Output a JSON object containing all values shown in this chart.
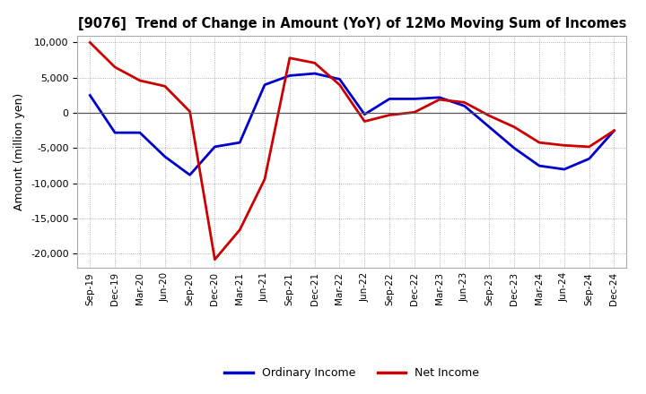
{
  "title": "[9076]  Trend of Change in Amount (YoY) of 12Mo Moving Sum of Incomes",
  "ylabel": "Amount (million yen)",
  "x_labels": [
    "Sep-19",
    "Dec-19",
    "Mar-20",
    "Jun-20",
    "Sep-20",
    "Dec-20",
    "Mar-21",
    "Jun-21",
    "Sep-21",
    "Dec-21",
    "Mar-22",
    "Jun-22",
    "Sep-22",
    "Dec-22",
    "Mar-23",
    "Jun-23",
    "Sep-23",
    "Dec-23",
    "Mar-24",
    "Jun-24",
    "Sep-24",
    "Dec-24"
  ],
  "ordinary_income": [
    2500,
    -2800,
    -2800,
    -6200,
    -8800,
    -4800,
    -4200,
    4000,
    5300,
    5600,
    4800,
    -200,
    2000,
    2000,
    2200,
    1000,
    -2000,
    -5000,
    -7500,
    -8000,
    -6500,
    -2500
  ],
  "net_income": [
    10000,
    6500,
    4600,
    3800,
    200,
    -20800,
    -16600,
    -9400,
    7800,
    7100,
    4000,
    -1200,
    -300,
    100,
    1900,
    1500,
    -400,
    -2000,
    -4200,
    -4600,
    -4800,
    -2500
  ],
  "ordinary_income_color": "#0000cc",
  "net_income_color": "#cc0000",
  "ylim": [
    -22000,
    11000
  ],
  "yticks": [
    -20000,
    -15000,
    -10000,
    -5000,
    0,
    5000,
    10000
  ],
  "background_color": "#ffffff",
  "plot_bg_color": "#ffffff",
  "grid_color": "#999999",
  "legend_labels": [
    "Ordinary Income",
    "Net Income"
  ]
}
